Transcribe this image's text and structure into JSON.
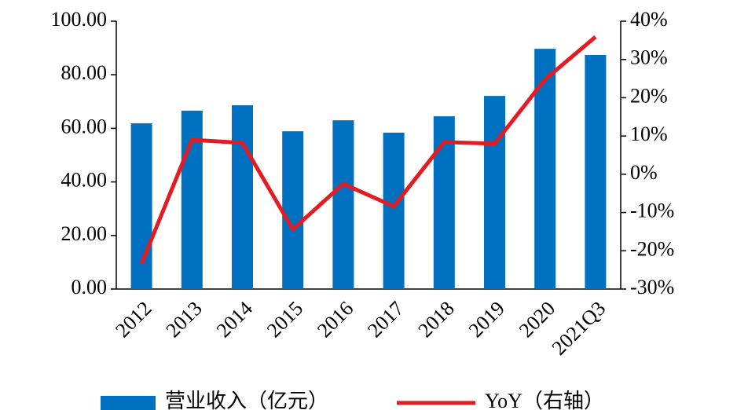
{
  "chart_data": {
    "type": "bar",
    "categories": [
      "2012",
      "2013",
      "2014",
      "2015",
      "2016",
      "2017",
      "2018",
      "2019",
      "2020",
      "2021Q3"
    ],
    "series": [
      {
        "name": "营业收入（亿元）",
        "color": "#0070c0",
        "values": [
          61.9,
          66.6,
          68.6,
          58.9,
          63.0,
          58.4,
          64.5,
          72.1,
          89.7,
          87.4
        ]
      },
      {
        "name": "YoY（右轴）",
        "type": "line",
        "axis": "y2",
        "color": "#e31c23",
        "values": [
          -23.4,
          9.0,
          8.2,
          -14.4,
          -2.5,
          -8.4,
          8.4,
          8.0,
          24.8,
          35.9
        ]
      }
    ],
    "ylim": [
      0,
      100
    ],
    "yticks": [
      {
        "value": 0,
        "label": "0.00"
      },
      {
        "value": 20,
        "label": "20.00"
      },
      {
        "value": 40,
        "label": "40.00"
      },
      {
        "value": 60,
        "label": "60.00"
      },
      {
        "value": 80,
        "label": "80.00"
      },
      {
        "value": 100,
        "label": "100.00"
      }
    ],
    "y2lim": [
      -30,
      40
    ],
    "y2ticks": [
      {
        "value": -30,
        "label": "-30%"
      },
      {
        "value": -20,
        "label": "-20%"
      },
      {
        "value": -10,
        "label": "-10%"
      },
      {
        "value": 0,
        "label": "0%"
      },
      {
        "value": 10,
        "label": "10%"
      },
      {
        "value": 20,
        "label": "20%"
      },
      {
        "value": 30,
        "label": "30%"
      },
      {
        "value": 40,
        "label": "40%"
      }
    ],
    "grid": false
  }
}
